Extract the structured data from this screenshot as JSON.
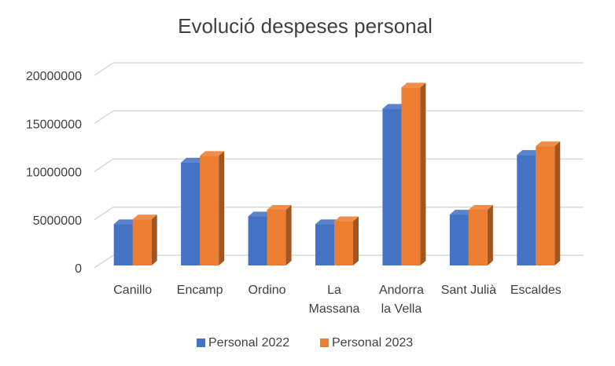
{
  "chart_data": {
    "type": "bar",
    "title": "Evolució despeses personal",
    "categories": [
      [
        "Canillo"
      ],
      [
        "Encamp"
      ],
      [
        "Ordino"
      ],
      [
        "La",
        "Massana"
      ],
      [
        "Andorra",
        "la Vella"
      ],
      [
        "Sant Julià"
      ],
      [
        "Escaldes"
      ]
    ],
    "series": [
      {
        "name": "Personal 2022",
        "color": "#4472C4",
        "values": [
          4300000,
          10700000,
          5100000,
          4300000,
          16300000,
          5300000,
          11500000
        ]
      },
      {
        "name": "Personal 2023",
        "color": "#ED7D31",
        "values": [
          4800000,
          11400000,
          5800000,
          4600000,
          18500000,
          5800000,
          12400000
        ]
      }
    ],
    "ylim": [
      0,
      20000000
    ],
    "yticks": [
      "0",
      "5000000",
      "10000000",
      "15000000",
      "20000000"
    ],
    "ytick_values": [
      0,
      5000000,
      10000000,
      15000000,
      20000000
    ],
    "grid": true,
    "legend_position": "bottom",
    "style": "3d-clustered-column"
  }
}
